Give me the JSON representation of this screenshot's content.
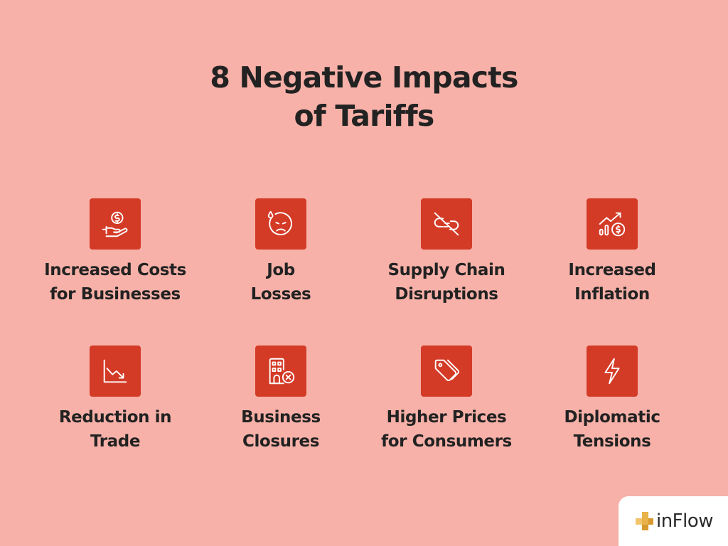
{
  "title": {
    "line1": "8 Negative Impacts",
    "line2": "of Tariffs"
  },
  "colors": {
    "background": "#f7b1a8",
    "icon_tile": "#d33b27",
    "text": "#222222",
    "brand_gold": "#e9b24a"
  },
  "impacts": [
    {
      "icon": "money-hand-icon",
      "line1": "Increased Costs",
      "line2": "for Businesses"
    },
    {
      "icon": "sad-face-icon",
      "line1": "Job",
      "line2": "Losses"
    },
    {
      "icon": "broken-chain-icon",
      "line1": "Supply Chain",
      "line2": "Disruptions"
    },
    {
      "icon": "rising-chart-coin-icon",
      "line1": "Increased",
      "line2": "Inflation"
    },
    {
      "icon": "declining-chart-icon",
      "line1": "Reduction in",
      "line2": "Trade"
    },
    {
      "icon": "closed-building-icon",
      "line1": "Business",
      "line2": "Closures"
    },
    {
      "icon": "price-tags-icon",
      "line1": "Higher Prices",
      "line2": "for Consumers"
    },
    {
      "icon": "lightning-icon",
      "line1": "Diplomatic",
      "line2": "Tensions"
    }
  ],
  "brand": {
    "name": "inFlow"
  }
}
